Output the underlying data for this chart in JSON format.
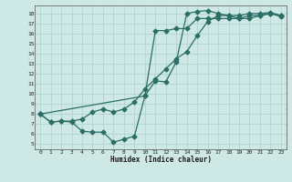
{
  "xlabel": "Humidex (Indice chaleur)",
  "background_color": "#cde8e5",
  "grid_color": "#b0d4d0",
  "line_color": "#2a6e65",
  "xlim": [
    -0.5,
    23.5
  ],
  "ylim": [
    4.5,
    18.8
  ],
  "xticks": [
    0,
    1,
    2,
    3,
    4,
    5,
    6,
    7,
    8,
    9,
    10,
    11,
    12,
    13,
    14,
    15,
    16,
    17,
    18,
    19,
    20,
    21,
    22,
    23
  ],
  "yticks": [
    5,
    6,
    7,
    8,
    9,
    10,
    11,
    12,
    13,
    14,
    15,
    16,
    17,
    18
  ],
  "line1_x": [
    0,
    1,
    2,
    3,
    4,
    5,
    6,
    7,
    8,
    9,
    10,
    11,
    12,
    13,
    14,
    15,
    16,
    17,
    18,
    19,
    20,
    21,
    22,
    23
  ],
  "line1_y": [
    8.0,
    7.2,
    7.3,
    7.2,
    6.3,
    6.2,
    6.2,
    5.2,
    5.5,
    5.8,
    9.8,
    11.3,
    11.2,
    13.2,
    18.0,
    18.2,
    18.3,
    18.0,
    17.8,
    17.8,
    18.0,
    18.0,
    18.1,
    17.8
  ],
  "line2_x": [
    0,
    1,
    2,
    3,
    4,
    5,
    6,
    7,
    8,
    9,
    10,
    11,
    12,
    13,
    14,
    15,
    16,
    17,
    18,
    19,
    20,
    21,
    22,
    23
  ],
  "line2_y": [
    8.0,
    7.2,
    7.3,
    7.3,
    7.5,
    8.2,
    8.5,
    8.2,
    8.5,
    9.2,
    10.5,
    11.5,
    12.5,
    13.5,
    14.2,
    15.8,
    17.2,
    17.8,
    17.8,
    17.5,
    17.5,
    17.8,
    18.0,
    17.8
  ],
  "line3_x": [
    0,
    10,
    11,
    12,
    13,
    14,
    15,
    16,
    17,
    18,
    19,
    20,
    21,
    22,
    23
  ],
  "line3_y": [
    8.0,
    9.8,
    16.3,
    16.3,
    16.5,
    16.5,
    17.5,
    17.5,
    17.5,
    17.5,
    17.5,
    17.8,
    17.8,
    18.0,
    17.7
  ]
}
